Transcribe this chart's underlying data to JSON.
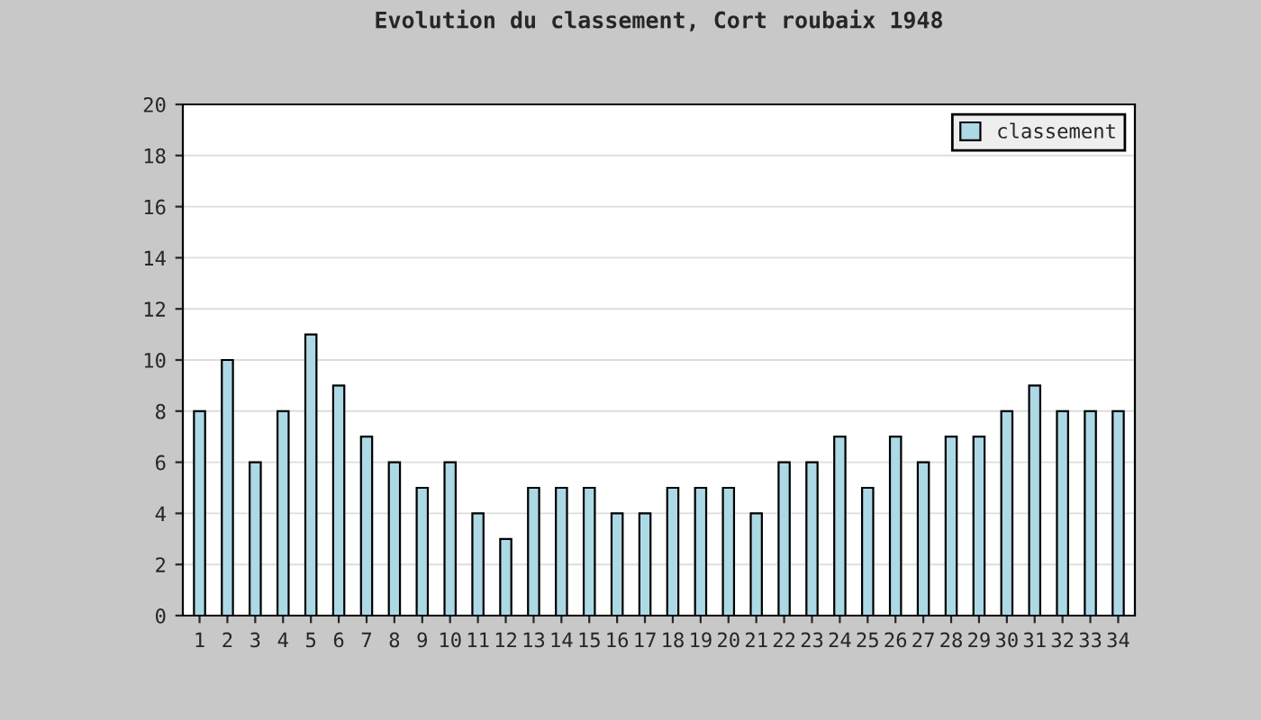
{
  "chart_data": {
    "type": "bar",
    "title": "Evolution du classement, Cort roubaix 1948",
    "categories": [
      "1",
      "2",
      "3",
      "4",
      "5",
      "6",
      "7",
      "8",
      "9",
      "10",
      "11",
      "12",
      "13",
      "14",
      "15",
      "16",
      "17",
      "18",
      "19",
      "20",
      "21",
      "22",
      "23",
      "24",
      "25",
      "26",
      "27",
      "28",
      "29",
      "30",
      "31",
      "32",
      "33",
      "34"
    ],
    "series": [
      {
        "name": "classement",
        "color": "#add8e6",
        "values": [
          8,
          10,
          6,
          8,
          11,
          9,
          7,
          6,
          5,
          6,
          4,
          3,
          5,
          5,
          5,
          4,
          4,
          5,
          5,
          5,
          4,
          6,
          6,
          7,
          5,
          7,
          6,
          7,
          7,
          8,
          9,
          8,
          8,
          8
        ]
      }
    ],
    "ylim": [
      0,
      20
    ],
    "yticks": [
      0,
      2,
      4,
      6,
      8,
      10,
      12,
      14,
      16,
      18,
      20
    ],
    "grid": "y",
    "legend": "top right"
  }
}
